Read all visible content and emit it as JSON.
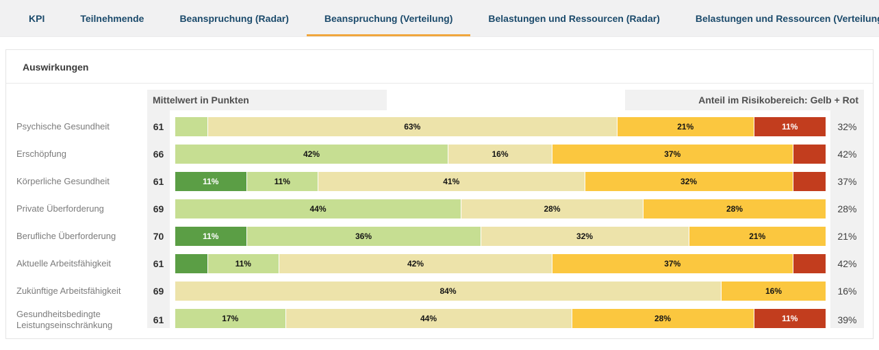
{
  "tabs": [
    {
      "label": "KPI",
      "active": false
    },
    {
      "label": "Teilnehmende",
      "active": false
    },
    {
      "label": "Beanspruchung (Radar)",
      "active": false
    },
    {
      "label": "Beanspruchung (Verteilung)",
      "active": true
    },
    {
      "label": "Belastungen und Ressourcen (Radar)",
      "active": false
    },
    {
      "label": "Belastungen und Ressourcen (Verteilung)",
      "active": false
    }
  ],
  "card": {
    "title": "Auswirkungen",
    "header_left": "Mittelwert in Punkten",
    "header_right": "Anteil im Risikobereich: Gelb + Rot"
  },
  "colors": {
    "green_dark": "#5b9e45",
    "green_light": "#c6de92",
    "beige": "#ede3aa",
    "yellow": "#fbc73f",
    "red": "#c23d1e",
    "band_gray": "#f1f1f1",
    "tab_text": "#1b4a6b",
    "active_tab_underline": "#f0a63c"
  },
  "chart_data": {
    "type": "bar",
    "variant": "horizontal-stacked-100-percent",
    "title": "Auswirkungen",
    "unit": "%",
    "label_rule": "segment labels shown only for values >= 10%",
    "categories": [
      "Psychische Gesundheit",
      "Erschöpfung",
      "Körperliche Gesundheit",
      "Private Überforderung",
      "Berufliche Überforderung",
      "Aktuelle Arbeitsfähigkeit",
      "Zukünftige Arbeitsfähigkeit",
      "Gesundheitsbedingte Leistungseinschränkung"
    ],
    "mittelwert_in_punkten": [
      61,
      66,
      61,
      69,
      70,
      61,
      69,
      61
    ],
    "series": [
      {
        "name": "green-dark",
        "color_key": "green_dark",
        "values": [
          0,
          0,
          11,
          0,
          11,
          5,
          0,
          0
        ]
      },
      {
        "name": "green-light",
        "color_key": "green_light",
        "values": [
          5,
          42,
          11,
          44,
          36,
          11,
          0,
          17
        ]
      },
      {
        "name": "beige",
        "color_key": "beige",
        "values": [
          63,
          16,
          41,
          28,
          32,
          42,
          84,
          44
        ]
      },
      {
        "name": "yellow",
        "color_key": "yellow",
        "values": [
          21,
          37,
          32,
          28,
          21,
          37,
          16,
          28
        ]
      },
      {
        "name": "red",
        "color_key": "red",
        "values": [
          11,
          5,
          5,
          0,
          0,
          5,
          0,
          11
        ]
      }
    ],
    "anteil_im_risikobereich": [
      32,
      42,
      37,
      28,
      21,
      42,
      16,
      39
    ]
  }
}
